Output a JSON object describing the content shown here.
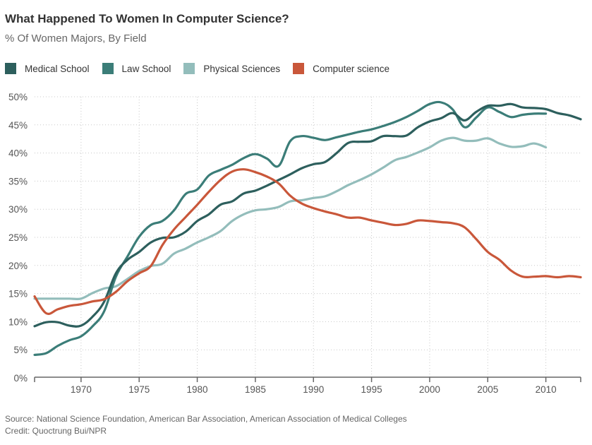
{
  "chart_data": {
    "type": "line",
    "title": "What Happened To Women In Computer Science?",
    "subtitle": "% Of Women Majors, By Field",
    "xlabel": "",
    "ylabel": "",
    "xlim": [
      1966,
      2013
    ],
    "ylim": [
      0,
      50
    ],
    "yticks": [
      0,
      5,
      10,
      15,
      20,
      25,
      30,
      35,
      40,
      45,
      50
    ],
    "ytick_labels": [
      "0%",
      "5%",
      "10%",
      "15%",
      "20%",
      "25%",
      "30%",
      "35%",
      "40%",
      "45%",
      "50%"
    ],
    "xticks": [
      1970,
      1975,
      1980,
      1985,
      1990,
      1995,
      2000,
      2005,
      2010
    ],
    "xtick_labels": [
      "1970",
      "1975",
      "1980",
      "1985",
      "1990",
      "1995",
      "2000",
      "2005",
      "2010"
    ],
    "grid": true,
    "legend_position": "top-left",
    "series": [
      {
        "name": "Medical School",
        "color": "#2d5f5d",
        "x": [
          1966,
          1967,
          1968,
          1969,
          1970,
          1971,
          1972,
          1973,
          1974,
          1975,
          1976,
          1977,
          1978,
          1979,
          1980,
          1981,
          1982,
          1983,
          1984,
          1985,
          1986,
          1987,
          1988,
          1989,
          1990,
          1991,
          1992,
          1993,
          1994,
          1995,
          1996,
          1997,
          1998,
          1999,
          2000,
          2001,
          2002,
          2003,
          2004,
          2005,
          2006,
          2007,
          2008,
          2009,
          2010,
          2011,
          2012,
          2013
        ],
        "values": [
          9.2,
          9.9,
          9.9,
          9.3,
          9.3,
          10.9,
          13.6,
          18.6,
          21.0,
          22.4,
          24.1,
          24.9,
          25.0,
          26.0,
          27.9,
          29.1,
          30.8,
          31.4,
          32.8,
          33.3,
          34.2,
          35.2,
          36.2,
          37.3,
          38.0,
          38.4,
          40.0,
          41.8,
          42.0,
          42.1,
          43.0,
          43.0,
          43.1,
          44.6,
          45.6,
          46.2,
          47.1,
          45.8,
          47.3,
          48.4,
          48.4,
          48.7,
          48.1,
          48.0,
          47.8,
          47.1,
          46.7,
          46.0
        ]
      },
      {
        "name": "Law School",
        "color": "#3b7d78",
        "x": [
          1966,
          1967,
          1968,
          1969,
          1970,
          1971,
          1972,
          1973,
          1974,
          1975,
          1976,
          1977,
          1978,
          1979,
          1980,
          1981,
          1982,
          1983,
          1984,
          1985,
          1986,
          1987,
          1988,
          1989,
          1990,
          1991,
          1992,
          1993,
          1994,
          1995,
          1996,
          1997,
          1998,
          1999,
          2000,
          2001,
          2002,
          2003,
          2004,
          2005,
          2006,
          2007,
          2008,
          2009,
          2010
        ],
        "values": [
          4.1,
          4.4,
          5.7,
          6.7,
          7.4,
          9.2,
          11.9,
          18.0,
          21.6,
          25.1,
          27.2,
          27.9,
          29.8,
          32.7,
          33.5,
          36.0,
          37.0,
          37.9,
          39.1,
          39.8,
          39.0,
          37.7,
          42.1,
          43.0,
          42.7,
          42.3,
          42.8,
          43.3,
          43.8,
          44.2,
          44.8,
          45.5,
          46.4,
          47.5,
          48.7,
          49.0,
          47.7,
          44.6,
          46.3,
          48.1,
          47.3,
          46.4,
          46.8,
          47.0,
          47.0
        ]
      },
      {
        "name": "Physical Sciences",
        "color": "#93bdbb",
        "x": [
          1966,
          1967,
          1968,
          1969,
          1970,
          1971,
          1972,
          1973,
          1974,
          1975,
          1976,
          1977,
          1978,
          1979,
          1980,
          1981,
          1982,
          1983,
          1984,
          1985,
          1986,
          1987,
          1988,
          1989,
          1990,
          1991,
          1992,
          1993,
          1994,
          1995,
          1996,
          1997,
          1998,
          1999,
          2000,
          2001,
          2002,
          2003,
          2004,
          2005,
          2006,
          2007,
          2008,
          2009,
          2010
        ],
        "values": [
          14.1,
          14.1,
          14.1,
          14.1,
          14.1,
          15.1,
          15.9,
          16.3,
          17.6,
          19.0,
          19.9,
          20.3,
          22.1,
          23.0,
          24.1,
          25.0,
          26.1,
          27.9,
          29.1,
          29.8,
          30.0,
          30.4,
          31.4,
          31.6,
          32.0,
          32.3,
          33.2,
          34.3,
          35.2,
          36.2,
          37.4,
          38.7,
          39.3,
          40.1,
          41.0,
          42.2,
          42.7,
          42.2,
          42.2,
          42.6,
          41.7,
          41.1,
          41.2,
          41.7,
          41.0
        ]
      },
      {
        "name": "Computer science",
        "color": "#c9573a",
        "x": [
          1966,
          1967,
          1968,
          1969,
          1970,
          1971,
          1972,
          1973,
          1974,
          1975,
          1976,
          1977,
          1978,
          1979,
          1980,
          1981,
          1982,
          1983,
          1984,
          1985,
          1986,
          1987,
          1988,
          1989,
          1990,
          1991,
          1992,
          1993,
          1994,
          1995,
          1996,
          1997,
          1998,
          1999,
          2000,
          2001,
          2002,
          2003,
          2004,
          2005,
          2006,
          2007,
          2008,
          2009,
          2010,
          2011,
          2012,
          2013
        ],
        "values": [
          14.5,
          11.5,
          12.2,
          12.8,
          13.1,
          13.6,
          14.0,
          15.3,
          17.2,
          18.6,
          19.9,
          23.6,
          26.4,
          28.6,
          30.8,
          33.1,
          35.2,
          36.7,
          37.1,
          36.6,
          35.8,
          34.6,
          32.4,
          31.0,
          30.2,
          29.6,
          29.1,
          28.5,
          28.5,
          28.0,
          27.6,
          27.2,
          27.4,
          28.0,
          27.9,
          27.7,
          27.5,
          26.8,
          24.7,
          22.4,
          21.0,
          19.1,
          18.0,
          18.0,
          18.1,
          17.9,
          18.1,
          17.9
        ]
      }
    ]
  },
  "footer": {
    "source": "Source: National Science Foundation, American Bar Association, American Association of Medical Colleges",
    "credit": "Credit: Quoctrung Bui/NPR"
  }
}
